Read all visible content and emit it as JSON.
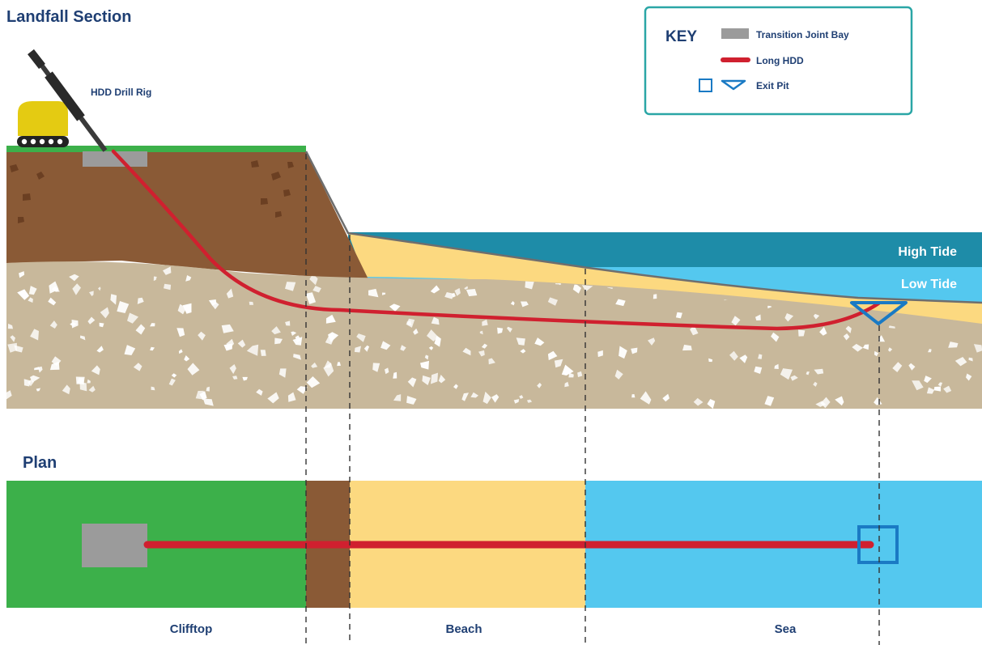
{
  "section_title": "Landfall Section",
  "plan_title": "Plan",
  "rig_label": "HDD Drill Rig",
  "tides": {
    "high": "High Tide",
    "low": "Low Tide"
  },
  "key": {
    "title": "KEY",
    "items": [
      {
        "label": "Transition Joint Bay",
        "color": "#9b9b9b"
      },
      {
        "label": "Long HDD",
        "color": "#d0202f"
      },
      {
        "label": "Exit Pit",
        "color": "#1a7ac4"
      }
    ]
  },
  "zones": [
    "Clifftop",
    "Beach",
    "Sea"
  ],
  "colors": {
    "grass": "#3cb04a",
    "soil": "#8a5a36",
    "sand": "#fcd980",
    "subsoil": "#c8b89b",
    "sea_light": "#54c8ef",
    "sea_dark": "#1e8ca8",
    "hdd": "#d0202f",
    "pit": "#1a7ac4",
    "jointbay": "#9b9b9b",
    "rig": "#e4cb12",
    "text": "#1f3f73",
    "key_border": "#2aa6a6"
  }
}
